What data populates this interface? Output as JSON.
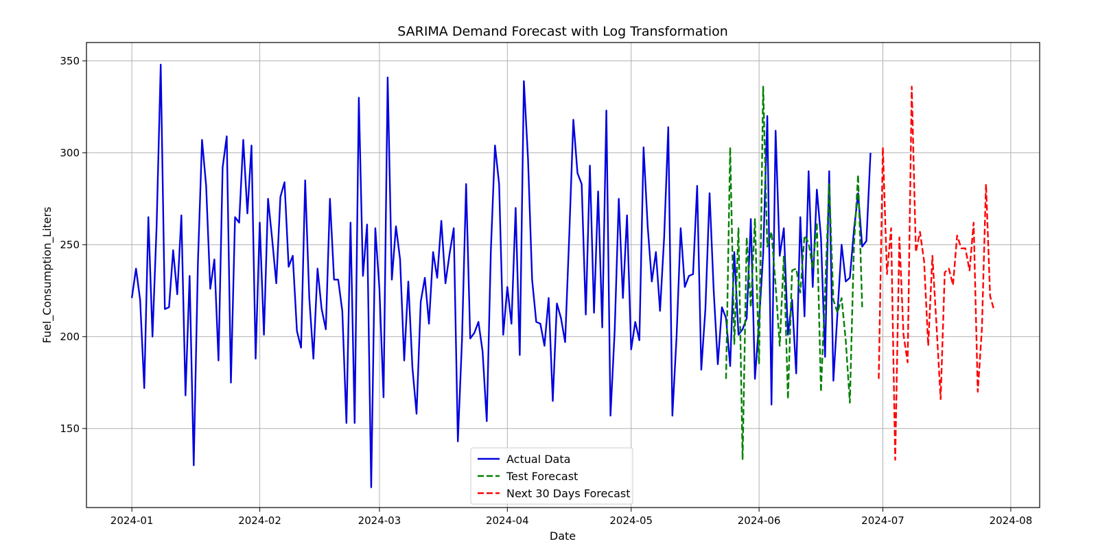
{
  "chart_data": {
    "type": "line",
    "title": "SARIMA Demand Forecast with Log Transformation",
    "xlabel": "Date",
    "ylabel": "Fuel_Consumption_Liters",
    "x_axis_type": "date",
    "xlim": [
      "2023-12-21",
      "2024-08-08"
    ],
    "ylim": [
      107,
      360
    ],
    "x_tick_labels": [
      "2024-01",
      "2024-02",
      "2024-03",
      "2024-04",
      "2024-05",
      "2024-06",
      "2024-07",
      "2024-08"
    ],
    "y_ticks": [
      150,
      200,
      250,
      300,
      350
    ],
    "grid": true,
    "legend_position": "lower center",
    "series": [
      {
        "name": "Actual Data",
        "color": "#0000e0",
        "dash": "solid",
        "start": "2024-01-01",
        "values": [
          221,
          237,
          220,
          172,
          265,
          200,
          260,
          348,
          215,
          216,
          247,
          223,
          266,
          168,
          233,
          130,
          240,
          307,
          282,
          226,
          242,
          187,
          292,
          309,
          175,
          265,
          262,
          307,
          267,
          304,
          188,
          262,
          201,
          275,
          253,
          229,
          276,
          284,
          238,
          244,
          203,
          194,
          285,
          221,
          188,
          237,
          215,
          204,
          275,
          231,
          231,
          214,
          153,
          262,
          153,
          330,
          233,
          261,
          118,
          259,
          226,
          167,
          341,
          231,
          260,
          242,
          187,
          230,
          183,
          158,
          219,
          232,
          207,
          246,
          232,
          263,
          229,
          245,
          259,
          143,
          198,
          283,
          199,
          202,
          208,
          192,
          154,
          247,
          304,
          283,
          201,
          227,
          207,
          270,
          190,
          339,
          297,
          231,
          208,
          207,
          195,
          221,
          165,
          218,
          210,
          197,
          255,
          318,
          289,
          283,
          212,
          293,
          213,
          279,
          205,
          323,
          157,
          203,
          275,
          221,
          266,
          193,
          208,
          198,
          303,
          260,
          230,
          246,
          214,
          254,
          314,
          157,
          200,
          259,
          227,
          233,
          234,
          282,
          182,
          215,
          278,
          225,
          185,
          216,
          210,
          184,
          246,
          201,
          204,
          210,
          264,
          177,
          208,
          245,
          320,
          163,
          312,
          244,
          259,
          201,
          220,
          180,
          265,
          211,
          290,
          227,
          280,
          254,
          189,
          290,
          176,
          213,
          250,
          230,
          232,
          258,
          278,
          249,
          252,
          300
        ]
      },
      {
        "name": "Test Forecast",
        "color": "#008000",
        "dash": "dashed",
        "start": "2024-05-24",
        "values": [
          177,
          303,
          196,
          259,
          133,
          254,
          216,
          264,
          185,
          336,
          249,
          257,
          228,
          195,
          244,
          166,
          236,
          237,
          224,
          255,
          251,
          237,
          262,
          170,
          225,
          283,
          220,
          213,
          221,
          198,
          164,
          250,
          288,
          216
        ]
      },
      {
        "name": "Next 30 Days Forecast",
        "color": "#ff0000",
        "dash": "dashed",
        "start": "2024-06-30",
        "values": [
          177,
          303,
          234,
          259,
          133,
          254,
          201,
          186,
          336,
          246,
          257,
          241,
          195,
          244,
          206,
          166,
          235,
          237,
          228,
          255,
          248,
          248,
          236,
          262,
          170,
          204,
          283,
          222,
          214
        ]
      }
    ]
  }
}
